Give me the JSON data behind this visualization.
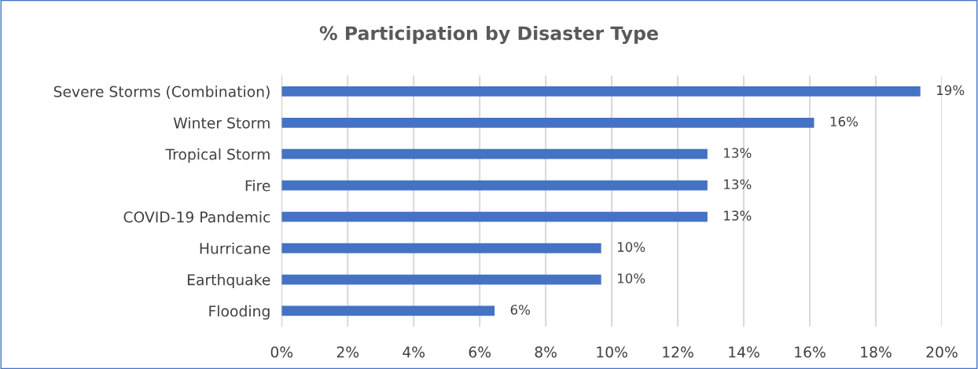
{
  "chart_data": {
    "type": "bar",
    "orientation": "horizontal",
    "title": "% Participation by Disaster Type",
    "categories": [
      "Severe Storms (Combination)",
      "Winter Storm",
      "Tropical Storm",
      "Fire",
      "COVID-19 Pandemic",
      "Hurricane",
      "Earthquake",
      "Flooding"
    ],
    "values": [
      19.35,
      16.13,
      12.9,
      12.9,
      12.9,
      9.68,
      9.68,
      6.45
    ],
    "value_labels": [
      "19%",
      "16%",
      "13%",
      "13%",
      "13%",
      "10%",
      "10%",
      "6%"
    ],
    "color": "#4472c4",
    "xlim": [
      0,
      20
    ],
    "xticks": [
      {
        "value": 0,
        "label": "0%"
      },
      {
        "value": 2,
        "label": "2%"
      },
      {
        "value": 4,
        "label": "4%"
      },
      {
        "value": 6,
        "label": "6%"
      },
      {
        "value": 8,
        "label": "8%"
      },
      {
        "value": 10,
        "label": "10%"
      },
      {
        "value": 12,
        "label": "12%"
      },
      {
        "value": 14,
        "label": "14%"
      },
      {
        "value": 16,
        "label": "16%"
      },
      {
        "value": 18,
        "label": "18%"
      },
      {
        "value": 20,
        "label": "20%"
      }
    ],
    "grid": "x",
    "legend": false
  }
}
